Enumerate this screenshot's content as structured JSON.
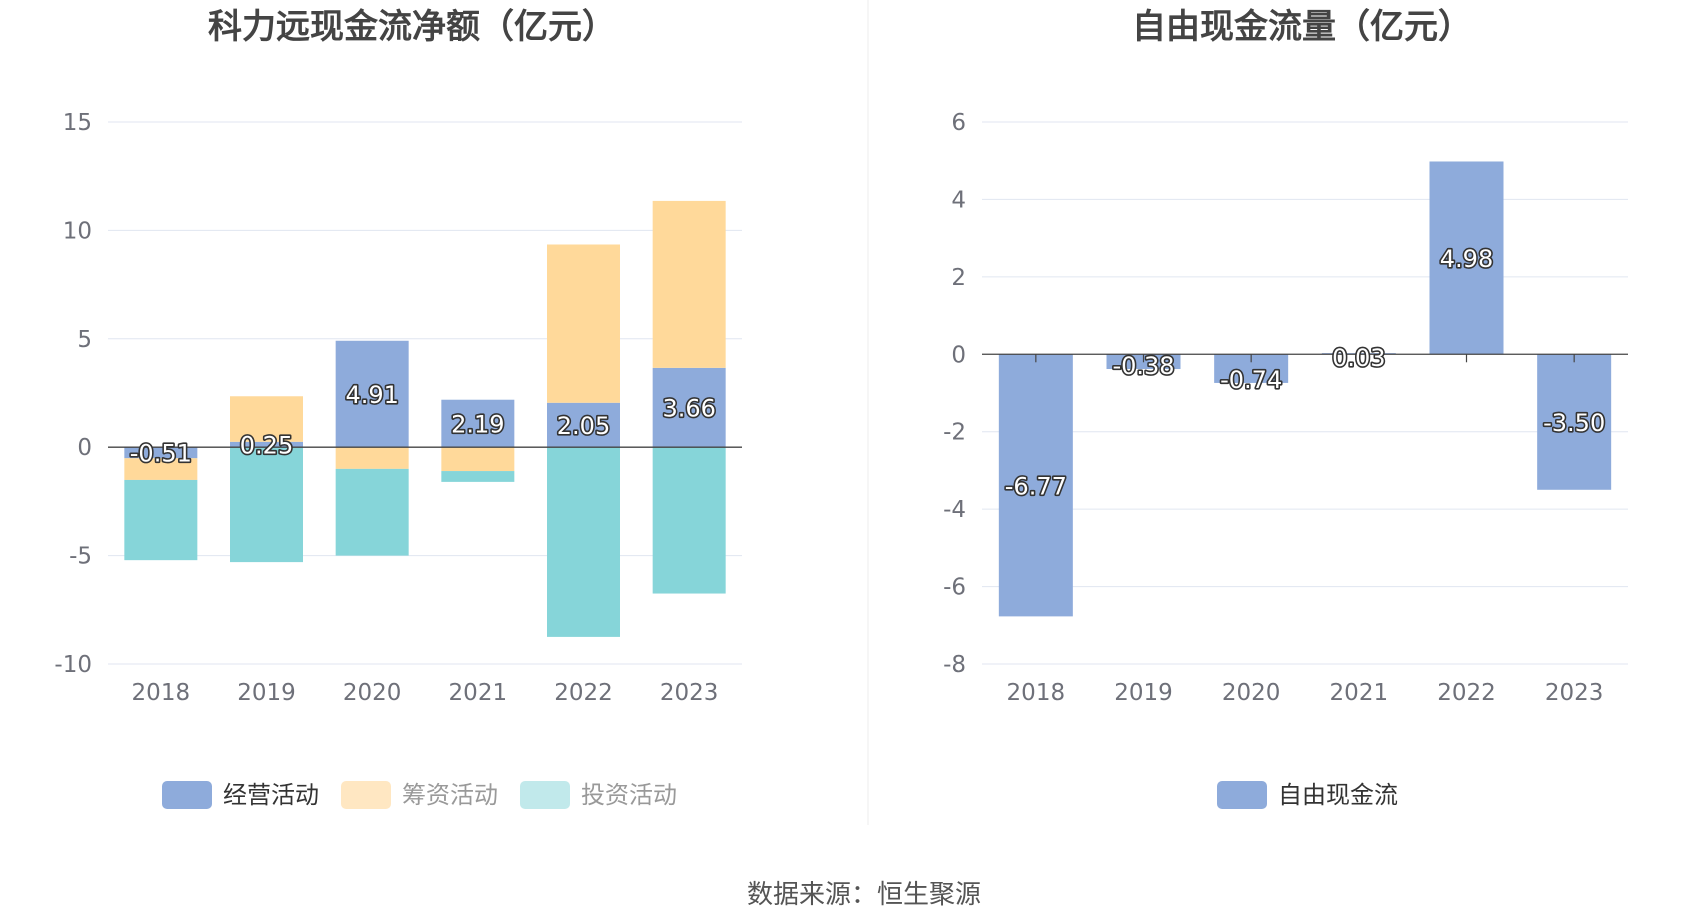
{
  "source": "数据来源：恒生聚源",
  "colors": {
    "operating": "#8eabdb",
    "financing": "#ffd99a",
    "investing": "#86d5d9",
    "free_cash_flow": "#8eabdb",
    "legend_financing": "#ffe7c2",
    "legend_investing": "#c1e9eb"
  },
  "chart_data": [
    {
      "type": "bar",
      "stacked": true,
      "title": "科力远现金流净额（亿元）",
      "categories": [
        "2018",
        "2019",
        "2020",
        "2021",
        "2022",
        "2023"
      ],
      "ylim": [
        -10,
        15
      ],
      "yticks": [
        15,
        10,
        5,
        0,
        -5,
        -10
      ],
      "grid": true,
      "legend_position": "bottom",
      "series": [
        {
          "name": "经营活动",
          "values": [
            -0.51,
            0.25,
            4.91,
            2.19,
            2.05,
            3.66
          ],
          "labels": [
            "-0.51",
            "0.25",
            "4.91",
            "2.19",
            "2.05",
            "3.66"
          ]
        },
        {
          "name": "筹资活动",
          "values": [
            -1.0,
            2.1,
            -1.0,
            -1.1,
            7.3,
            7.7
          ]
        },
        {
          "name": "投资活动",
          "values": [
            -3.7,
            -5.3,
            -4.0,
            -0.5,
            -8.75,
            -6.75
          ]
        }
      ]
    },
    {
      "type": "bar",
      "title": "自由现金流量（亿元）",
      "categories": [
        "2018",
        "2019",
        "2020",
        "2021",
        "2022",
        "2023"
      ],
      "ylim": [
        -8,
        6
      ],
      "yticks": [
        6,
        4,
        2,
        0,
        -2,
        -4,
        -6,
        -8
      ],
      "grid": true,
      "legend_position": "bottom",
      "series": [
        {
          "name": "自由现金流",
          "values": [
            -6.77,
            -0.38,
            -0.74,
            0.03,
            4.98,
            -3.5
          ],
          "labels": [
            "-6.77",
            "-0.38",
            "-0.74",
            "0.03",
            "4.98",
            "-3.50"
          ]
        }
      ]
    }
  ]
}
